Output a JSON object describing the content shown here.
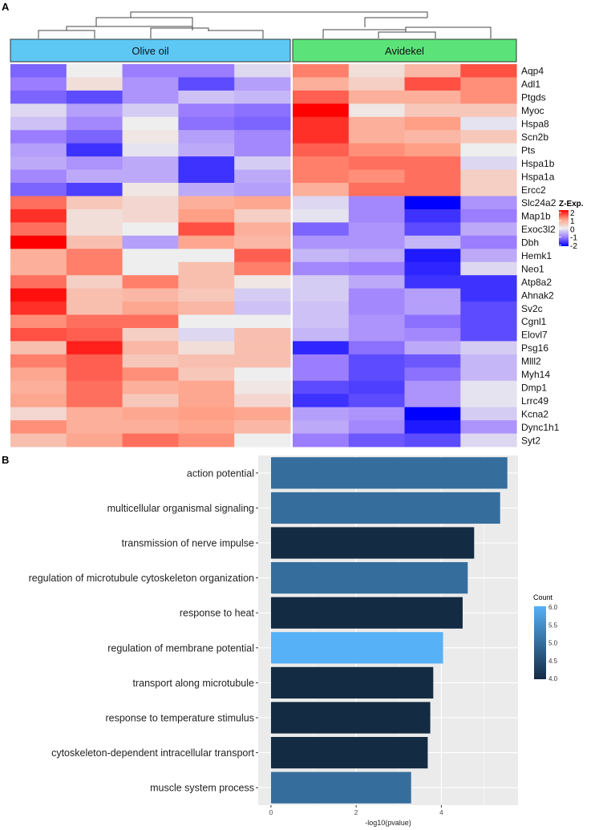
{
  "chart_data": [
    {
      "panel_label": "A",
      "type": "heatmap",
      "groups": [
        {
          "name": "Olive oil",
          "color": "#5ec8f5",
          "n_samples": 5
        },
        {
          "name": "Avidekel",
          "color": "#5be37a",
          "n_samples": 4
        }
      ],
      "genes": [
        "Aqp4",
        "Adl1",
        "Ptgds",
        "Myoc",
        "Hspa8",
        "Scn2b",
        "Pts",
        "Hspa1b",
        "Hspa1a",
        "Ercc2",
        "Slc24a2",
        "Map1b",
        "Exoc3l2",
        "Dbh",
        "Hemk1",
        "Neo1",
        "Atp8a2",
        "Ahnak2",
        "Sv2c",
        "Cgnl1",
        "Elovl7",
        "Psg16",
        "Mlll2",
        "Myh14",
        "Dmp1",
        "Lrrc49",
        "Kcna2",
        "Dync1h1",
        "Syt2"
      ],
      "values": [
        [
          -1.2,
          0,
          -1.0,
          -1.0,
          -0.2,
          1.2,
          0.2,
          0.7,
          1.5
        ],
        [
          -1.0,
          0.2,
          -0.8,
          -1.4,
          -0.7,
          0.8,
          0.4,
          1.5,
          1.1
        ],
        [
          -1.2,
          -1.4,
          -0.8,
          -0.4,
          -0.5,
          1.4,
          0.8,
          0.8,
          1.1
        ],
        [
          -0.2,
          -0.7,
          -0.3,
          -1.0,
          -1.1,
          2.0,
          0.1,
          0.5,
          0.5
        ],
        [
          -0.4,
          -0.9,
          0,
          -1.1,
          -1.2,
          1.7,
          0.8,
          1.0,
          -0.1
        ],
        [
          -1.0,
          -1.2,
          0.1,
          -0.7,
          -0.9,
          1.7,
          0.8,
          0.7,
          0.5
        ],
        [
          -0.7,
          -1.6,
          -0.1,
          -0.6,
          -0.9,
          1.4,
          1.1,
          1.0,
          0
        ],
        [
          -0.6,
          -0.8,
          -0.6,
          -1.6,
          -0.3,
          1.2,
          1.3,
          1.3,
          -0.2
        ],
        [
          -0.9,
          -0.6,
          -0.6,
          -1.6,
          -0.6,
          1.2,
          1.1,
          1.3,
          0.4
        ],
        [
          -1.2,
          -1.5,
          0.1,
          -0.6,
          -0.7,
          0.8,
          1.3,
          1.3,
          0.4
        ],
        [
          1.3,
          0.5,
          0.3,
          0.8,
          0.9,
          -0.2,
          -0.9,
          -2.0,
          -0.8
        ],
        [
          1.7,
          0.2,
          0.3,
          1.0,
          0.4,
          -0.1,
          -0.9,
          -1.6,
          -1.0
        ],
        [
          1.3,
          0.2,
          0,
          1.5,
          0.8,
          -1.2,
          -0.8,
          -1.4,
          -0.6
        ],
        [
          2.0,
          0.6,
          -0.7,
          0.9,
          0.7,
          -0.8,
          -0.8,
          -0.5,
          -1.0
        ],
        [
          0.8,
          1.2,
          0,
          0,
          1.4,
          -0.5,
          -0.6,
          -1.8,
          -0.6
        ],
        [
          0.8,
          1.2,
          0,
          0.6,
          1.2,
          -0.9,
          -1.0,
          -1.7,
          -0.2
        ],
        [
          1.3,
          0.4,
          1.2,
          0.6,
          0.1,
          -0.3,
          -0.6,
          -1.6,
          -1.6
        ],
        [
          1.9,
          0.6,
          0.7,
          0.5,
          -0.3,
          -0.3,
          -0.9,
          -0.7,
          -1.6
        ],
        [
          1.7,
          0.6,
          0.9,
          0.7,
          -0.4,
          -0.4,
          -0.9,
          -0.7,
          -1.4
        ],
        [
          1.1,
          1.3,
          1.3,
          0,
          0,
          -0.4,
          -0.8,
          -1.1,
          -1.4
        ],
        [
          1.5,
          1.4,
          0.4,
          -0.2,
          0.6,
          -0.5,
          -0.8,
          -0.9,
          -1.4
        ],
        [
          0.6,
          1.8,
          0.7,
          0.2,
          0.6,
          -1.7,
          -1.1,
          -0.6,
          -0.3
        ],
        [
          1.2,
          1.4,
          0.5,
          0.6,
          0.6,
          -1.0,
          -1.4,
          -1.3,
          -0.5
        ],
        [
          0.9,
          1.4,
          1.1,
          0.5,
          0,
          -1.0,
          -1.4,
          -1.1,
          -0.5
        ],
        [
          0.8,
          1.3,
          0.8,
          0.9,
          0.1,
          -1.4,
          -1.5,
          -0.8,
          -0.1
        ],
        [
          0.9,
          1.3,
          0.5,
          0.9,
          0.3,
          -1.6,
          -1.4,
          -0.8,
          -0.1
        ],
        [
          0.3,
          0.8,
          0.9,
          1.0,
          0.9,
          -0.7,
          -0.8,
          -2.0,
          -0.3
        ],
        [
          1.1,
          0.8,
          0.8,
          0.9,
          0.7,
          -0.6,
          -0.9,
          -1.8,
          -0.8
        ],
        [
          0.6,
          0.9,
          1.3,
          1.1,
          0,
          -1.0,
          -1.3,
          -1.4,
          -0.2
        ]
      ],
      "legend": {
        "title": "Z-Exp.",
        "ticks": [
          "2",
          "1",
          "0",
          "-1",
          "-2"
        ],
        "range": [
          -2,
          2
        ],
        "colors": {
          "low": "#0000ff",
          "mid": "#eeeeee",
          "high": "#ff0000"
        }
      },
      "column_dendrogram": true
    },
    {
      "panel_label": "B",
      "type": "bar",
      "orientation": "horizontal",
      "categories": [
        "action potential",
        "multicellular organismal signaling",
        "transmission of nerve impulse",
        "regulation of microtubule cytoskeleton organization",
        "response to heat",
        "regulation of membrane potential",
        "transport along microtubule",
        "response to temperature stimulus",
        "cytoskeleton-dependent intracellular transport",
        "muscle system process"
      ],
      "values": [
        5.55,
        5.38,
        4.77,
        4.62,
        4.5,
        4.04,
        3.81,
        3.74,
        3.68,
        3.29
      ],
      "count": [
        5,
        5,
        4,
        5,
        4,
        6,
        4,
        4,
        4,
        5
      ],
      "xlabel": "-log10(pvalue)",
      "xticks": [
        "0",
        "2",
        "4"
      ],
      "xlim": [
        -0.3,
        5.8
      ],
      "grid": true,
      "legend": {
        "title": "Count",
        "ticks": [
          "6.0",
          "5.5",
          "5.0",
          "4.5",
          "4.0"
        ],
        "range": [
          4,
          6
        ],
        "colors": {
          "low": "#132b43",
          "high": "#56b1f7"
        },
        "placement": "right"
      }
    }
  ]
}
